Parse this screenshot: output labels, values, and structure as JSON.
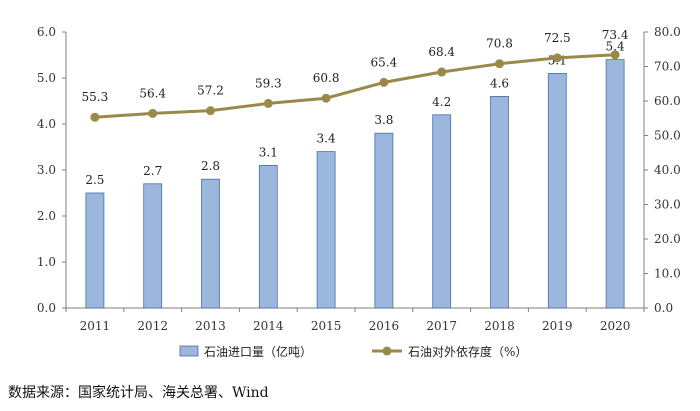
{
  "chart_data": {
    "type": "bar",
    "categories": [
      "2011",
      "2012",
      "2013",
      "2014",
      "2015",
      "2016",
      "2017",
      "2018",
      "2019",
      "2020"
    ],
    "series": [
      {
        "name": "石油进口量（亿吨）",
        "type": "bar",
        "axis": "left",
        "color": "#9bb7dd",
        "values": [
          2.5,
          2.7,
          2.8,
          3.1,
          3.4,
          3.8,
          4.2,
          4.6,
          5.1,
          5.4
        ]
      },
      {
        "name": "石油对外依存度（%）",
        "type": "line",
        "axis": "right",
        "color": "#9a8a4a",
        "values": [
          55.3,
          56.4,
          57.2,
          59.3,
          60.8,
          65.4,
          68.4,
          70.8,
          72.5,
          73.4
        ]
      }
    ],
    "ylim_left": [
      0,
      6
    ],
    "ylim_right": [
      0,
      80
    ],
    "yticks_left": [
      "0.0",
      "1.0",
      "2.0",
      "3.0",
      "4.0",
      "5.0",
      "6.0"
    ],
    "yticks_right": [
      "0.0",
      "10.0",
      "20.0",
      "30.0",
      "40.0",
      "50.0",
      "60.0",
      "70.0",
      "80.0"
    ],
    "grid": false,
    "legend_position": "bottom"
  },
  "source_text": "数据来源：国家统计局、海关总署、Wind"
}
